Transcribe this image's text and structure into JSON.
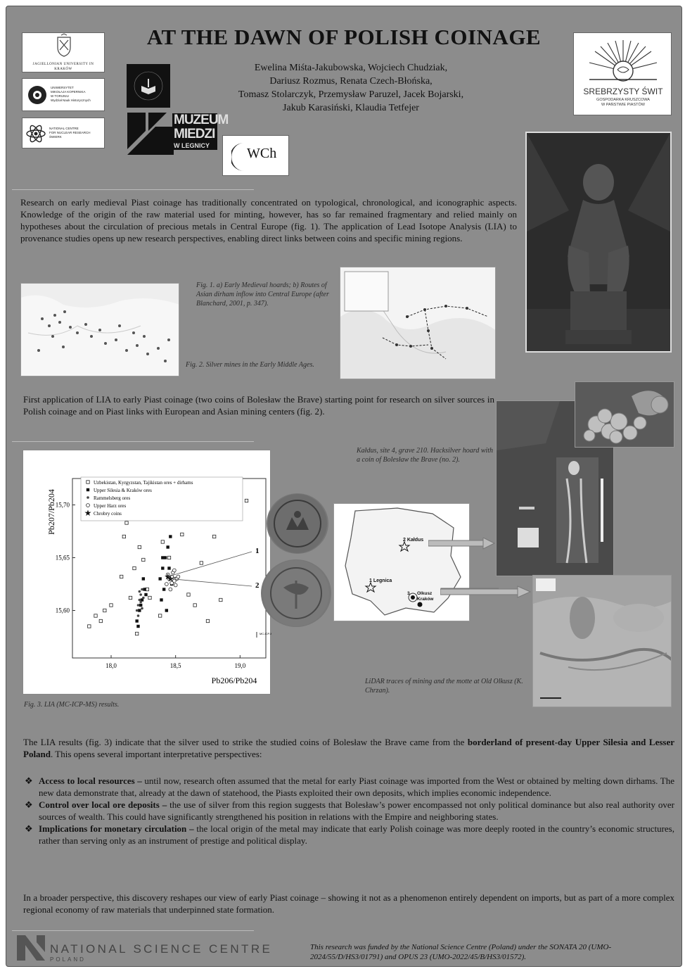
{
  "poster": {
    "title": "AT THE DAWN OF POLISH COINAGE",
    "authors": [
      "Ewelina Miśta-Jakubowska, Wojciech Chudziak,",
      "Dariusz Rozmus, Renata Czech-Błońska,",
      "Tomasz Stolarczyk, Przemysław Paruzel, Jacek Bojarski,",
      "Jakub Karasiński, Klaudia Tetfejer"
    ],
    "logos": {
      "jagiellonian": "JAGIELLONIAN UNIVERSITY IN KRAKÓW",
      "umk": [
        "UNIWERSYTET",
        "MIKOŁAJA KOPERNIKA",
        "W TORUNIU",
        "Wydział Nauk Historycznych"
      ],
      "ncbj": [
        "NATIONAL CENTRE",
        "FOR NUCLEAR RESEARCH",
        "ŚWIERK"
      ],
      "muzeum": [
        "MUZEUM",
        "MIEDZI",
        "W LEGNICY"
      ],
      "wch": "WCh",
      "srebrzysty_title": "SREBRZYSTY ŚWIT",
      "srebrzysty_sub": [
        "GOSPODARKA KRUSZCOWA",
        "W PAŃSTWIE PIASTÓW"
      ]
    },
    "intro": "Research on early medieval Piast coinage has traditionally concentrated on typological, chronological, and iconographic aspects. Knowledge of the origin of the raw material used for minting, however, has so far remained fragmentary and relied mainly on hypotheses about the circulation of precious metals in Central Europe (fig. 1). The application of Lead Isotope Analysis (LIA) to provenance studies opens up new research perspectives, enabling direct links between coins and specific mining regions.",
    "fig1_caption": "Fig. 1. a) Early Medieval hoards; b) Routes of Asian dirham inflow into Central Europe (after Blanchard, 2001, p. 347).",
    "fig2_caption": "Fig. 2. Silver mines in the Early Middle Ages.",
    "first_app": "First application of LIA to early Piast coinage (two coins of Bolesław the Brave) starting point for research on silver sources in Polish coinage and on Piast links with European and Asian mining centers (fig. 2).",
    "kaldus_caption": "Kałdus, site 4, grave 210. Hacksilver hoard with a coin of Bolesław the Brave (no. 2).",
    "lidar_caption": "LiDAR traces of mining and the motte at Old Olkusz (K. Chrzan).",
    "fig3_caption": "Fig. 3. LIA (MC-ICP-MS) results.",
    "map_labels": {
      "kaldus": "Kałdus",
      "legnica": "Legnica",
      "olkusz": "Olkusz",
      "krakow": "Kraków",
      "n1": "1",
      "n2": "2",
      "n3": "3"
    },
    "results": {
      "pre": "The LIA results (fig. 3) indicate that the silver used to strike the studied coins of Bolesław the Brave came from the ",
      "bold": "borderland of present-day Upper Silesia and Lesser Poland",
      "post": ". This opens several important interpretative perspectives:"
    },
    "bullets": [
      {
        "title": "Access to local resources –",
        "text": " until now, research often assumed that the metal for early Piast coinage was imported from the West or obtained by melting down dirhams. The new data demonstrate that, already at the dawn of statehood, the Piasts exploited their own deposits, which implies economic independence."
      },
      {
        "title": "Control over local ore deposits –",
        "text": " the use of silver from this region suggests that Bolesław’s power encompassed not only political dominance but also real authority over sources of wealth. This could have significantly strengthened his position in relations with the Empire and neighboring states."
      },
      {
        "title": "Implications for monetary circulation –",
        "text": " the local origin of the metal may indicate that early Polish coinage was more deeply rooted in the country’s economic structures, rather than serving only as an instrument of prestige and political display."
      }
    ],
    "conclusion": "In a broader perspective, this discovery reshapes our view of early Piast coinage – showing it not as a phenomenon entirely dependent on imports, but as part of a more complex regional economy of raw materials that underpinned state formation.",
    "footer": {
      "ncn_name": "NATIONAL SCIENCE CENTRE",
      "ncn_country": "POLAND",
      "funding": "This research was funded by the National Science Centre (Poland) under the SONATA 20 (UMO-2024/55/D/HS3/01791) and OPUS 23 (UMO-2022/45/B/HS3/01572)."
    }
  },
  "chart_data": {
    "type": "scatter",
    "xlabel": "Pb206/Pb204",
    "ylabel": "Pb207/Pb204",
    "xlim": [
      17.7,
      19.2
    ],
    "ylim": [
      15.555,
      15.725
    ],
    "xticks": [
      "18,0",
      "18,5",
      "19,0"
    ],
    "yticks": [
      "15,60",
      "15,65",
      "15,70"
    ],
    "legend_position": "top-left",
    "precision_label": "MC-ICP-MS error",
    "coin_labels": [
      "1",
      "2"
    ],
    "series": [
      {
        "name": "Uzbekistan, Kyrgyzstan, Tajikistan ores + dirhams",
        "marker": "open-square",
        "x": [
          17.83,
          17.88,
          17.95,
          18.05,
          18.1,
          18.18,
          18.22,
          18.28,
          18.35,
          18.45,
          18.5,
          18.6,
          18.65,
          18.75,
          18.85,
          18.95,
          18.0,
          18.15,
          18.25,
          18.4,
          18.55,
          17.92,
          18.08,
          18.3,
          18.7,
          18.12,
          18.38,
          19.05,
          18.8,
          18.2
        ],
        "y": [
          15.585,
          15.595,
          15.6,
          15.69,
          15.67,
          15.64,
          15.66,
          15.62,
          15.7,
          15.65,
          15.63,
          15.615,
          15.605,
          15.59,
          15.61,
          15.7,
          15.605,
          15.612,
          15.648,
          15.665,
          15.672,
          15.59,
          15.632,
          15.612,
          15.645,
          15.683,
          15.595,
          15.704,
          15.67,
          15.578
        ]
      },
      {
        "name": "Upper Silesia & Kraków ores",
        "marker": "filled-square",
        "x": [
          18.2,
          18.22,
          18.24,
          18.26,
          18.38,
          18.4,
          18.42,
          18.44,
          18.46,
          18.41,
          18.43,
          18.25,
          18.21,
          18.39,
          18.45,
          18.23,
          18.47,
          18.4,
          18.44,
          18.27
        ],
        "y": [
          15.59,
          15.6,
          15.61,
          15.62,
          15.63,
          15.64,
          15.65,
          15.66,
          15.67,
          15.62,
          15.6,
          15.63,
          15.585,
          15.61,
          15.64,
          15.605,
          15.625,
          15.65,
          15.69,
          15.615
        ]
      },
      {
        "name": "Rammelsberg ores",
        "marker": "dot",
        "x": [
          18.2,
          18.21,
          18.22,
          18.23,
          18.24,
          18.25,
          18.21,
          18.23,
          18.22,
          18.24
        ],
        "y": [
          15.6,
          15.605,
          15.61,
          15.615,
          15.62,
          15.612,
          15.595,
          15.608,
          15.618,
          15.602
        ]
      },
      {
        "name": "Upper Harz ores",
        "marker": "open-circle",
        "x": [
          18.43,
          18.45,
          18.47,
          18.49,
          18.51,
          18.46,
          18.48,
          18.5,
          18.44,
          18.52,
          18.47,
          18.49
        ],
        "y": [
          15.625,
          15.63,
          15.632,
          15.628,
          15.63,
          15.62,
          15.636,
          15.624,
          15.634,
          15.632,
          15.626,
          15.638
        ]
      },
      {
        "name": "Chrobry coins",
        "marker": "star",
        "x": [
          18.44,
          18.46
        ],
        "y": [
          15.632,
          15.63
        ]
      }
    ]
  }
}
